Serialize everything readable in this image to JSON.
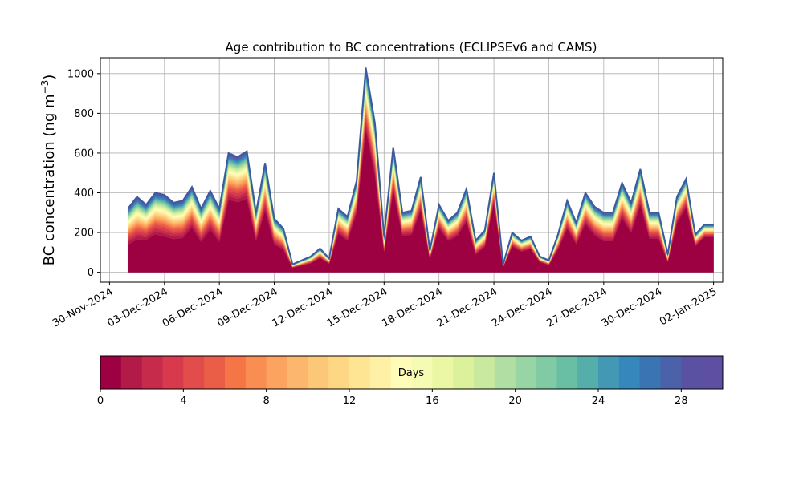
{
  "chart_data": {
    "type": "area",
    "title": "Age contribution to BC concentrations (ECLIPSEv6 and CAMS)",
    "ylabel": "BC concentration (ng m",
    "ylabel_sup": "−3",
    "ylabel_close": ")",
    "xlabel": "",
    "ylim": [
      -50,
      1080
    ],
    "xlim": [
      "2024-11-29T12:00",
      "2025-01-02T12:00"
    ],
    "grid": true,
    "yticks": [
      0,
      200,
      400,
      600,
      800,
      1000
    ],
    "xticks": [
      "30-Nov-2024",
      "03-Dec-2024",
      "06-Dec-2024",
      "09-Dec-2024",
      "12-Dec-2024",
      "15-Dec-2024",
      "18-Dec-2024",
      "21-Dec-2024",
      "24-Dec-2024",
      "27-Dec-2024",
      "30-Dec-2024",
      "02-Jan-2025"
    ],
    "x": [
      "2024-12-01T00:00",
      "2024-12-01T12:00",
      "2024-12-02T00:00",
      "2024-12-02T12:00",
      "2024-12-03T00:00",
      "2024-12-03T12:00",
      "2024-12-04T00:00",
      "2024-12-04T12:00",
      "2024-12-05T00:00",
      "2024-12-05T12:00",
      "2024-12-06T00:00",
      "2024-12-06T12:00",
      "2024-12-07T00:00",
      "2024-12-07T12:00",
      "2024-12-08T00:00",
      "2024-12-08T12:00",
      "2024-12-09T00:00",
      "2024-12-09T12:00",
      "2024-12-10T00:00",
      "2024-12-10T12:00",
      "2024-12-11T00:00",
      "2024-12-11T12:00",
      "2024-12-12T00:00",
      "2024-12-12T12:00",
      "2024-12-13T00:00",
      "2024-12-13T12:00",
      "2024-12-14T00:00",
      "2024-12-14T12:00",
      "2024-12-15T00:00",
      "2024-12-15T12:00",
      "2024-12-16T00:00",
      "2024-12-16T12:00",
      "2024-12-17T00:00",
      "2024-12-17T12:00",
      "2024-12-18T00:00",
      "2024-12-18T12:00",
      "2024-12-19T00:00",
      "2024-12-19T12:00",
      "2024-12-20T00:00",
      "2024-12-20T12:00",
      "2024-12-21T00:00",
      "2024-12-21T12:00",
      "2024-12-22T00:00",
      "2024-12-22T12:00",
      "2024-12-23T00:00",
      "2024-12-23T12:00",
      "2024-12-24T00:00",
      "2024-12-24T12:00",
      "2024-12-25T00:00",
      "2024-12-25T12:00",
      "2024-12-26T00:00",
      "2024-12-26T12:00",
      "2024-12-27T00:00",
      "2024-12-27T12:00",
      "2024-12-28T00:00",
      "2024-12-28T12:00",
      "2024-12-29T00:00",
      "2024-12-29T12:00",
      "2024-12-30T00:00",
      "2024-12-30T12:00",
      "2024-12-31T00:00",
      "2024-12-31T12:00",
      "2025-01-01T00:00",
      "2025-01-01T12:00",
      "2025-01-02T00:00"
    ],
    "total": [
      320,
      380,
      340,
      400,
      390,
      350,
      360,
      430,
      320,
      410,
      320,
      600,
      580,
      610,
      300,
      550,
      270,
      220,
      40,
      60,
      80,
      120,
      70,
      320,
      280,
      460,
      1030,
      750,
      180,
      630,
      300,
      310,
      480,
      110,
      340,
      260,
      300,
      420,
      160,
      210,
      500,
      40,
      200,
      160,
      180,
      80,
      60,
      190,
      360,
      250,
      400,
      330,
      300,
      300,
      450,
      350,
      520,
      300,
      300,
      90,
      380,
      470,
      190,
      240,
      240
    ],
    "fresh_fraction": [
      0.35,
      0.35,
      0.4,
      0.4,
      0.38,
      0.4,
      0.4,
      0.45,
      0.4,
      0.45,
      0.4,
      0.55,
      0.55,
      0.55,
      0.45,
      0.5,
      0.45,
      0.45,
      0.5,
      0.5,
      0.5,
      0.55,
      0.55,
      0.55,
      0.5,
      0.6,
      0.65,
      0.6,
      0.5,
      0.6,
      0.55,
      0.55,
      0.6,
      0.55,
      0.6,
      0.55,
      0.55,
      0.55,
      0.5,
      0.55,
      0.65,
      0.55,
      0.6,
      0.6,
      0.6,
      0.6,
      0.55,
      0.55,
      0.55,
      0.5,
      0.55,
      0.5,
      0.45,
      0.45,
      0.55,
      0.5,
      0.6,
      0.5,
      0.5,
      0.5,
      0.6,
      0.65,
      0.65,
      0.7,
      0.7
    ],
    "age_bins": 30,
    "colorbar": {
      "label": "Days",
      "ticks": [
        0,
        4,
        8,
        12,
        16,
        20,
        24,
        28
      ],
      "range": [
        0,
        30
      ],
      "colors": [
        "#9e0142",
        "#b21a48",
        "#c62b4b",
        "#d8394c",
        "#e24c4a",
        "#ea5e47",
        "#f57546",
        "#f98e52",
        "#fca35f",
        "#fdb66d",
        "#fdc778",
        "#fed785",
        "#fee593",
        "#fef1a6",
        "#fffbb9",
        "#f6fbb3",
        "#ebf7a2",
        "#dbf19b",
        "#c8e99e",
        "#b1dfa3",
        "#98d5a4",
        "#81cba4",
        "#69bfa4",
        "#55aeaa",
        "#4399b4",
        "#3587bc",
        "#3a74b3",
        "#4b61aa",
        "#5b51a3",
        "#5e4fa2"
      ]
    },
    "outline_color": "#3c5b9e"
  }
}
